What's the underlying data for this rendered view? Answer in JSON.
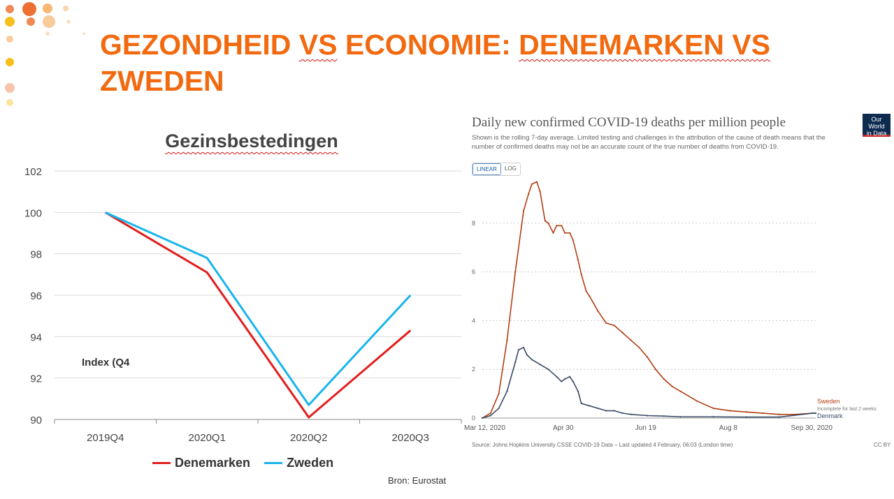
{
  "slide": {
    "title_part1": "GEZONDHEID ",
    "title_part2": "VS",
    "title_part3": " ECONOMIE: ",
    "title_part4": "DENEMARKEN VS",
    "title_part5": "ZWEDEN",
    "decor_colors": [
      "#e8570d",
      "#f39a3a",
      "#f5b800",
      "#f7c99a"
    ]
  },
  "chart_data": [
    {
      "type": "line",
      "title": "Gezinsbestedingen",
      "categories": [
        "2019Q4",
        "2020Q1",
        "2020Q2",
        "2020Q3"
      ],
      "ylim": [
        90,
        102
      ],
      "yticks": [
        "90",
        "92",
        "94",
        "96",
        "98",
        "100",
        "102"
      ],
      "grid": true,
      "legend_position": "bottom",
      "series": [
        {
          "name": "Denemarken",
          "color": "#e21d1d",
          "values": [
            100,
            97.1,
            90.1,
            94.3
          ]
        },
        {
          "name": "Zweden",
          "color": "#18b4ec",
          "values": [
            100,
            97.8,
            90.7,
            96.0
          ]
        }
      ],
      "annotation": "Index (Q4",
      "source": "Bron: Eurostat"
    },
    {
      "type": "line",
      "title": "Daily new confirmed COVID-19 deaths per million people",
      "subtitle": "Shown is the rolling 7-day average. Limited testing and challenges in the attribution of the cause of death means that the number of confirmed deaths may not be an accurate count of the true number of deaths from COVID-19.",
      "toggle": {
        "linear": "LINEAR",
        "log": "LOG",
        "active": "LINEAR"
      },
      "logo_line1": "Our World",
      "logo_line2": "in Data",
      "xticks": [
        "Mar 12, 2020",
        "Apr 30",
        "Jun 19",
        "Aug 8",
        "Sep 30, 2020"
      ],
      "xtick_days": [
        0,
        49,
        99,
        149,
        202
      ],
      "ylim": [
        0,
        10
      ],
      "yticks": [
        "0",
        "2",
        "4",
        "6",
        "8"
      ],
      "grid": true,
      "legend_position": "right",
      "series": [
        {
          "name": "Sweden",
          "note": "Incomplete for last 2 weeks",
          "color": "#b13e13",
          "x": [
            0,
            5,
            10,
            15,
            20,
            25,
            28,
            30,
            33,
            35,
            38,
            40,
            43,
            45,
            48,
            50,
            53,
            55,
            58,
            60,
            63,
            65,
            70,
            75,
            80,
            85,
            90,
            95,
            100,
            105,
            110,
            115,
            120,
            130,
            140,
            150,
            160,
            170,
            180,
            190,
            200,
            202
          ],
          "values": [
            0.0,
            0.2,
            1.0,
            3.2,
            6.0,
            8.5,
            9.2,
            9.6,
            9.7,
            9.3,
            8.1,
            8.0,
            7.6,
            7.9,
            7.9,
            7.6,
            7.6,
            7.3,
            6.5,
            5.9,
            5.2,
            5.0,
            4.4,
            3.9,
            3.8,
            3.5,
            3.2,
            2.9,
            2.5,
            2.0,
            1.6,
            1.3,
            1.1,
            0.7,
            0.4,
            0.3,
            0.25,
            0.2,
            0.15,
            0.15,
            0.2,
            0.2
          ]
        },
        {
          "name": "Denmark",
          "color": "#3a4a63",
          "x": [
            0,
            5,
            10,
            15,
            20,
            22,
            25,
            27,
            30,
            35,
            40,
            45,
            48,
            50,
            53,
            55,
            58,
            60,
            65,
            70,
            75,
            80,
            85,
            90,
            100,
            110,
            120,
            140,
            160,
            180,
            200,
            202
          ],
          "values": [
            0.0,
            0.1,
            0.4,
            1.1,
            2.3,
            2.8,
            2.9,
            2.6,
            2.4,
            2.2,
            2.0,
            1.7,
            1.5,
            1.6,
            1.7,
            1.5,
            1.1,
            0.6,
            0.5,
            0.4,
            0.3,
            0.3,
            0.2,
            0.15,
            0.1,
            0.08,
            0.05,
            0.05,
            0.04,
            0.04,
            0.2,
            0.2
          ]
        }
      ],
      "source": "Source: Johns Hopkins University CSSE COVID-19 Data – Last updated 4 February, 06:03 (London time)",
      "license": "CC BY"
    }
  ]
}
